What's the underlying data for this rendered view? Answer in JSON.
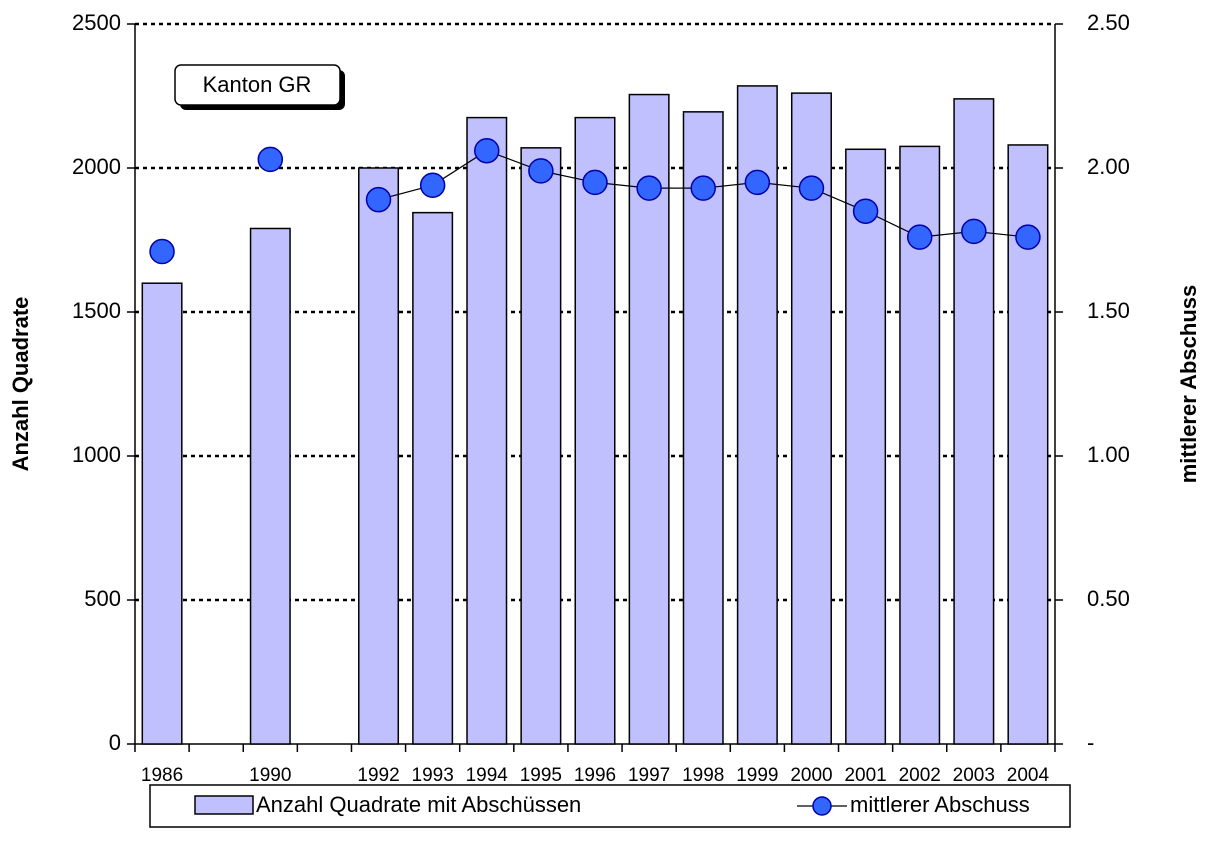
{
  "chart_data": {
    "type": "bar",
    "annotation": "Kanton GR",
    "ylabel": "Anzahl Quadrate",
    "y2label": "mittlerer Abschuss",
    "categories": [
      "1986",
      null,
      "1990",
      null,
      "1992",
      "1993",
      "1994",
      "1995",
      "1996",
      "1997",
      "1998",
      "1999",
      "2000",
      "2001",
      "2002",
      "2003",
      "2004"
    ],
    "series": [
      {
        "name": "Anzahl Quadrate mit Abschüssen",
        "type": "bar",
        "color": "#c0c0ff",
        "values": [
          1600,
          null,
          1790,
          null,
          2000,
          1845,
          2175,
          2070,
          2175,
          2255,
          2195,
          2285,
          2260,
          2065,
          2075,
          2240,
          2080
        ]
      },
      {
        "name": "mittlerer Abschuss",
        "type": "line",
        "axis": "y2",
        "color": "#3366ff",
        "values": [
          1.71,
          null,
          2.03,
          null,
          1.89,
          1.94,
          2.06,
          1.99,
          1.95,
          1.93,
          1.93,
          1.95,
          1.93,
          1.85,
          1.76,
          1.78,
          1.76
        ]
      }
    ],
    "ylim": [
      0,
      2500
    ],
    "yticks": [
      0,
      500,
      1000,
      1500,
      2000,
      2500
    ],
    "y2lim": [
      0,
      2.5
    ],
    "y2ticks": [
      {
        "value": 0,
        "label": "-"
      },
      {
        "value": 0.5,
        "label": "0.50"
      },
      {
        "value": 1,
        "label": "1.00"
      },
      {
        "value": 1.5,
        "label": "1.50"
      },
      {
        "value": 2,
        "label": "2.00"
      },
      {
        "value": 2.5,
        "label": "2.50"
      }
    ],
    "grid": true,
    "legend": "bottom"
  }
}
